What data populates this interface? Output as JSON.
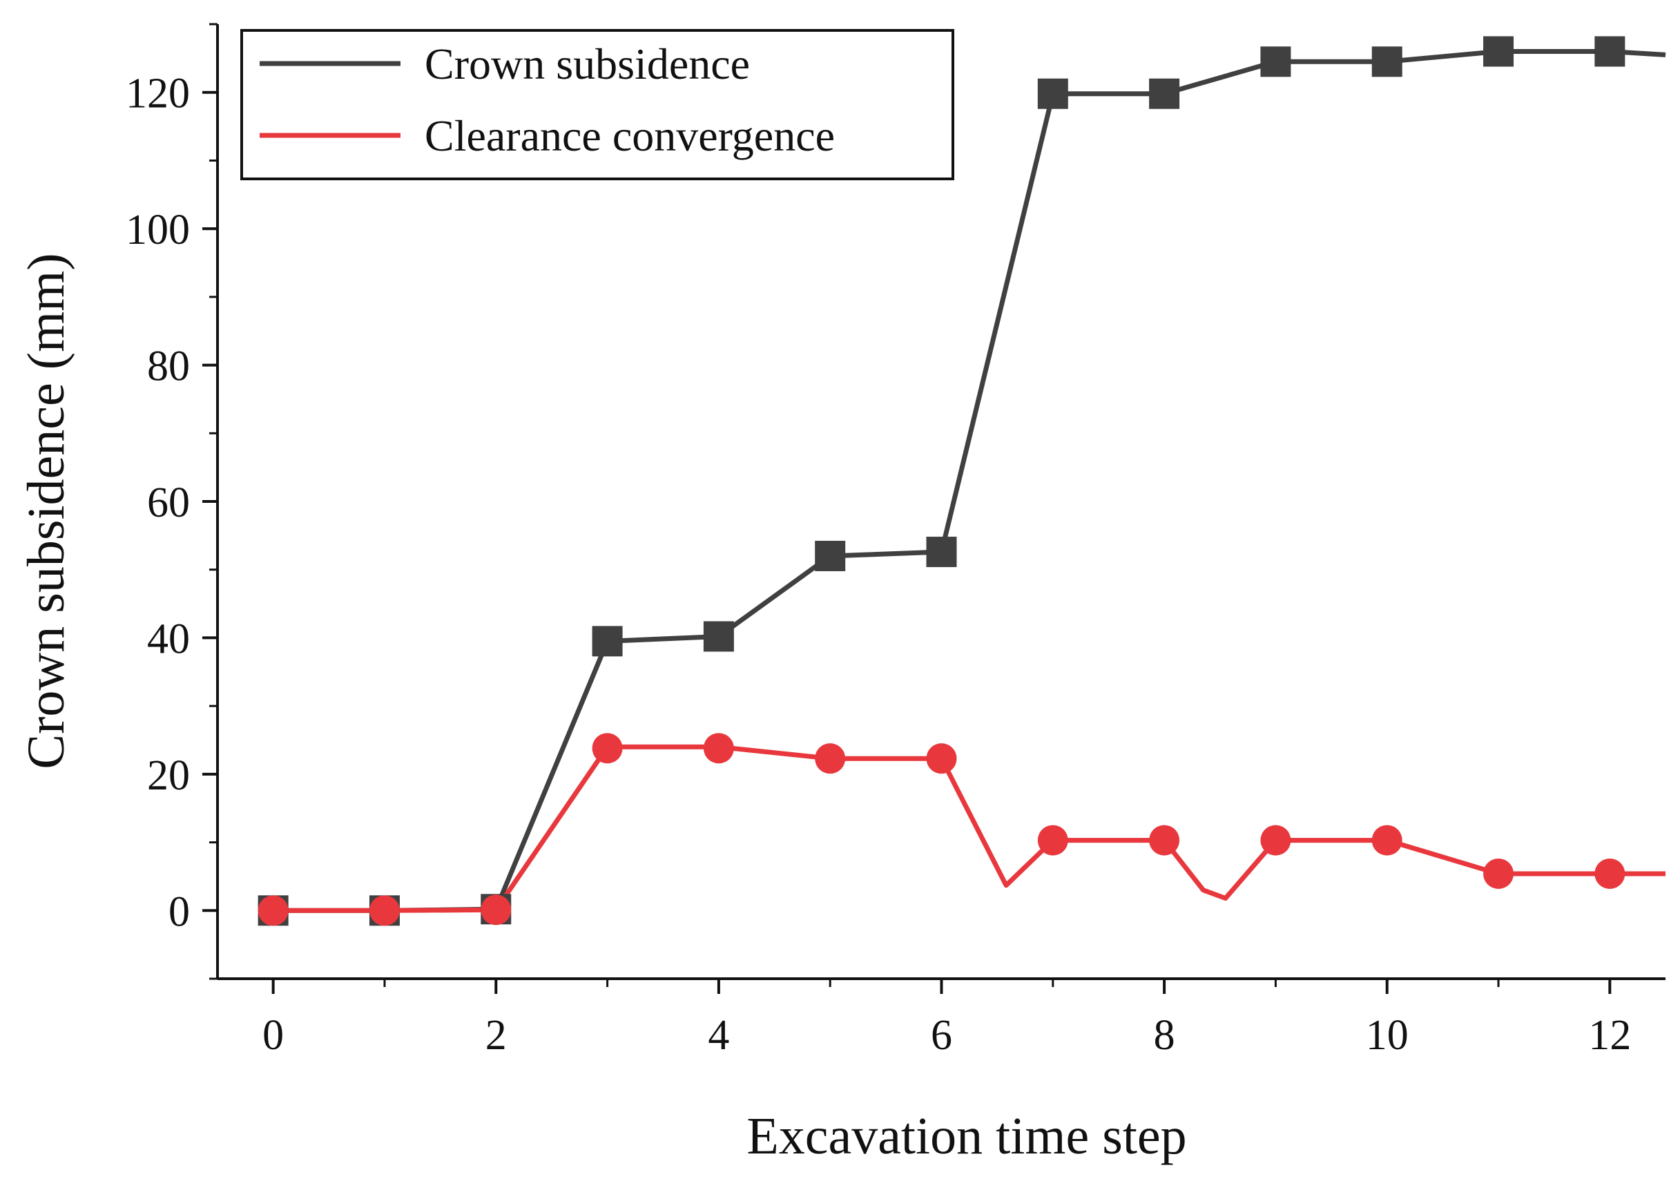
{
  "chart_data": {
    "type": "line",
    "title": "",
    "xlabel": "Excavation time step",
    "ylabel": "Crown subsidence (mm)",
    "xlim": [
      -0.5,
      12.5
    ],
    "ylim": [
      -10,
      130
    ],
    "x_ticks": [
      0,
      2,
      4,
      6,
      8,
      10,
      12
    ],
    "x_tick_labels": [
      "0",
      "2",
      "4",
      "6",
      "8",
      "10",
      "12"
    ],
    "x_minor_ticks": [
      1,
      3,
      5,
      7,
      9,
      11
    ],
    "y_ticks": [
      0,
      20,
      40,
      60,
      80,
      100,
      120
    ],
    "y_tick_labels": [
      "0",
      "20",
      "40",
      "60",
      "80",
      "100",
      "120"
    ],
    "y_minor_ticks": [
      -10,
      10,
      30,
      50,
      70,
      90,
      110,
      130
    ],
    "legend_position": "top-left",
    "series": [
      {
        "name": "Crown subsidence",
        "color": "#404040",
        "marker": "square",
        "line": [
          [
            0,
            0
          ],
          [
            1,
            0
          ],
          [
            2,
            0.2
          ],
          [
            3,
            39.5
          ],
          [
            4,
            40.2
          ],
          [
            5,
            52
          ],
          [
            6,
            52.6
          ],
          [
            7,
            119.8
          ],
          [
            8,
            119.8
          ],
          [
            9,
            124.5
          ],
          [
            10,
            124.5
          ],
          [
            11,
            126
          ],
          [
            12,
            126
          ],
          [
            12.5,
            125.5
          ]
        ],
        "markers": [
          [
            0,
            0
          ],
          [
            1,
            0
          ],
          [
            2,
            0.2
          ],
          [
            3,
            39.5
          ],
          [
            4,
            40.2
          ],
          [
            5,
            52
          ],
          [
            6,
            52.6
          ],
          [
            7,
            119.8
          ],
          [
            8,
            119.8
          ],
          [
            9,
            124.5
          ],
          [
            10,
            124.5
          ],
          [
            11,
            126
          ],
          [
            12,
            126
          ]
        ]
      },
      {
        "name": "Clearance convergence",
        "color": "#e8383d",
        "marker": "circle",
        "line": [
          [
            0,
            0
          ],
          [
            1,
            0
          ],
          [
            2,
            0.1
          ],
          [
            3,
            24
          ],
          [
            4,
            24
          ],
          [
            5,
            22.3
          ],
          [
            6,
            22.3
          ],
          [
            6.58,
            3.7
          ],
          [
            7,
            10.3
          ],
          [
            8,
            10.3
          ],
          [
            8.35,
            3
          ],
          [
            8.55,
            1.8
          ],
          [
            9,
            10.3
          ],
          [
            10,
            10.3
          ],
          [
            11,
            5.4
          ],
          [
            12,
            5.4
          ],
          [
            12.5,
            5.4
          ]
        ],
        "markers": [
          [
            0,
            0
          ],
          [
            1,
            0
          ],
          [
            2,
            0.1
          ],
          [
            3,
            23.8
          ],
          [
            4,
            23.8
          ],
          [
            5,
            22.3
          ],
          [
            6,
            22.3
          ],
          [
            7,
            10.3
          ],
          [
            8,
            10.3
          ],
          [
            9,
            10.3
          ],
          [
            10,
            10.3
          ],
          [
            11,
            5.4
          ],
          [
            12,
            5.4
          ]
        ]
      }
    ]
  }
}
